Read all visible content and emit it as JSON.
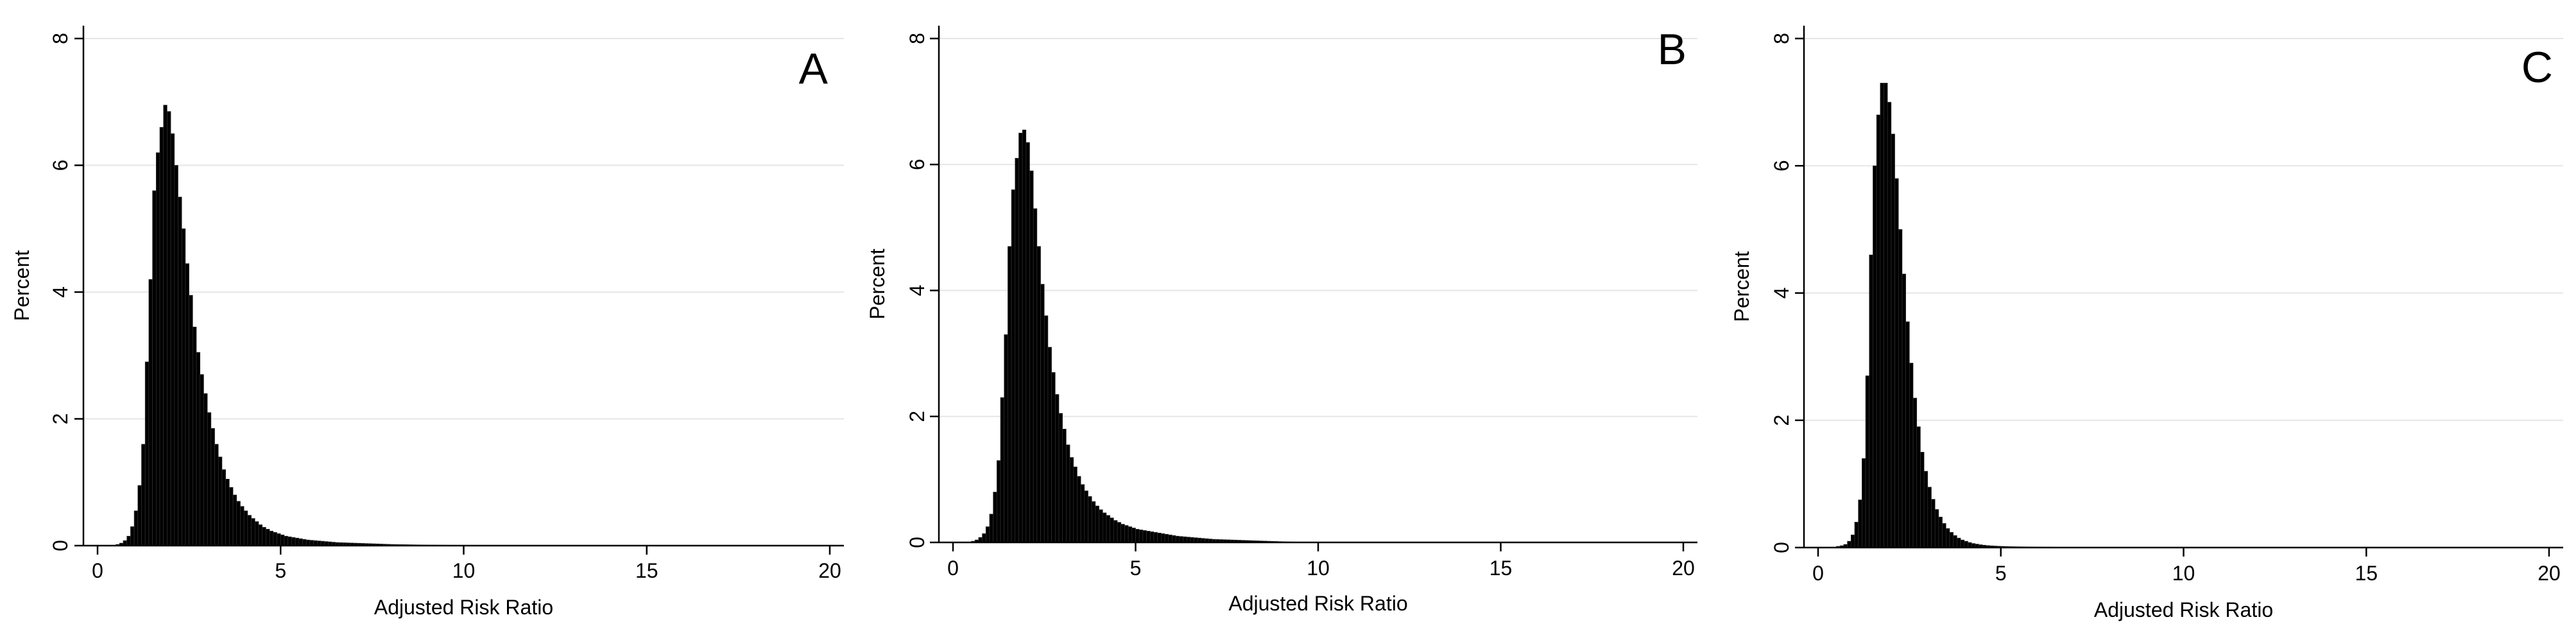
{
  "chart_data": [
    {
      "type": "bar",
      "panel_label": "A",
      "xlabel": "Adjusted Risk Ratio",
      "ylabel": "Percent",
      "xlim": [
        0,
        20
      ],
      "ylim": [
        0,
        8
      ],
      "xticks": [
        0,
        5,
        10,
        15,
        20
      ],
      "yticks": [
        0,
        2,
        4,
        6,
        8
      ],
      "grid": "horizontal",
      "bin_width": 0.1,
      "bin_start": 0.5,
      "values": [
        0.02,
        0.04,
        0.08,
        0.15,
        0.3,
        0.55,
        0.95,
        1.6,
        2.9,
        4.2,
        5.6,
        6.2,
        6.6,
        6.95,
        6.85,
        6.5,
        6.0,
        5.5,
        5.0,
        4.45,
        3.95,
        3.45,
        3.05,
        2.7,
        2.4,
        2.1,
        1.85,
        1.6,
        1.4,
        1.2,
        1.05,
        0.92,
        0.8,
        0.7,
        0.62,
        0.55,
        0.48,
        0.43,
        0.38,
        0.33,
        0.29,
        0.26,
        0.23,
        0.21,
        0.19,
        0.17,
        0.15,
        0.14,
        0.13,
        0.12,
        0.11,
        0.1,
        0.09,
        0.085,
        0.08,
        0.075,
        0.07,
        0.065,
        0.06,
        0.055,
        0.05,
        0.048,
        0.046,
        0.044,
        0.042,
        0.04,
        0.038,
        0.036,
        0.034,
        0.032,
        0.03,
        0.028,
        0.026,
        0.024,
        0.022,
        0.02,
        0.019,
        0.018,
        0.017,
        0.016,
        0.015,
        0.014,
        0.013,
        0.012,
        0.011,
        0.01,
        0.01,
        0.009,
        0.009,
        0.008,
        0.008,
        0.007,
        0.007,
        0.006,
        0.006,
        0.005
      ]
    },
    {
      "type": "bar",
      "panel_label": "B",
      "xlabel": "Adjusted Risk Ratio",
      "ylabel": "Percent",
      "xlim": [
        0,
        20
      ],
      "ylim": [
        0,
        8
      ],
      "xticks": [
        0,
        5,
        10,
        15,
        20
      ],
      "yticks": [
        0,
        2,
        4,
        6,
        8
      ],
      "grid": "horizontal",
      "bin_width": 0.1,
      "bin_start": 0.5,
      "values": [
        0.02,
        0.04,
        0.08,
        0.14,
        0.25,
        0.45,
        0.8,
        1.3,
        2.3,
        3.3,
        4.7,
        5.6,
        6.1,
        6.5,
        6.55,
        6.35,
        5.9,
        5.3,
        4.7,
        4.1,
        3.6,
        3.1,
        2.7,
        2.35,
        2.05,
        1.8,
        1.55,
        1.35,
        1.2,
        1.05,
        0.92,
        0.82,
        0.73,
        0.65,
        0.58,
        0.52,
        0.47,
        0.43,
        0.39,
        0.35,
        0.32,
        0.29,
        0.27,
        0.25,
        0.23,
        0.21,
        0.2,
        0.19,
        0.18,
        0.17,
        0.16,
        0.15,
        0.14,
        0.13,
        0.12,
        0.11,
        0.1,
        0.095,
        0.09,
        0.085,
        0.08,
        0.075,
        0.07,
        0.065,
        0.06,
        0.055,
        0.05,
        0.048,
        0.046,
        0.044,
        0.042,
        0.04,
        0.038,
        0.036,
        0.034,
        0.032,
        0.03,
        0.028,
        0.026,
        0.024,
        0.022,
        0.02,
        0.018,
        0.016,
        0.014,
        0.012,
        0.01,
        0.009,
        0.008,
        0.007,
        0.006,
        0.005
      ]
    },
    {
      "type": "bar",
      "panel_label": "C",
      "xlabel": "Adjusted Risk Ratio",
      "ylabel": "Percent",
      "xlim": [
        0,
        20
      ],
      "ylim": [
        0,
        8
      ],
      "xticks": [
        0,
        5,
        10,
        15,
        20
      ],
      "yticks": [
        0,
        2,
        4,
        6,
        8
      ],
      "grid": "horizontal",
      "bin_width": 0.1,
      "bin_start": 0.5,
      "values": [
        0.02,
        0.03,
        0.05,
        0.1,
        0.2,
        0.4,
        0.75,
        1.4,
        2.7,
        4.6,
        6.0,
        6.8,
        7.3,
        7.3,
        7.0,
        6.5,
        5.8,
        5.0,
        4.3,
        3.55,
        2.9,
        2.35,
        1.9,
        1.5,
        1.2,
        0.95,
        0.76,
        0.6,
        0.48,
        0.38,
        0.3,
        0.24,
        0.19,
        0.15,
        0.12,
        0.1,
        0.08,
        0.065,
        0.055,
        0.045,
        0.038,
        0.032,
        0.028,
        0.025,
        0.022,
        0.02,
        0.018,
        0.016,
        0.015,
        0.014,
        0.013,
        0.012,
        0.011,
        0.01,
        0.01,
        0.009,
        0.009,
        0.008,
        0.008,
        0.007,
        0.007,
        0.006,
        0.006,
        0.006,
        0.005,
        0.005,
        0.005,
        0.005,
        0.004,
        0.004,
        0.004,
        0.004,
        0.004,
        0.003,
        0.003,
        0.003,
        0.003,
        0.003,
        0.003,
        0.003
      ]
    }
  ]
}
